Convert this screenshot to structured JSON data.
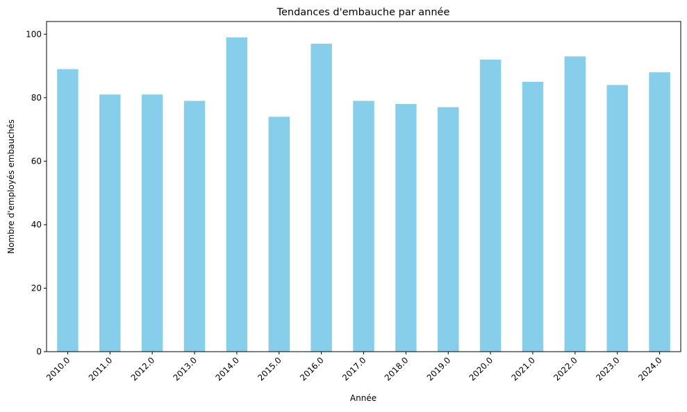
{
  "chart_data": {
    "type": "bar",
    "title": "Tendances d'embauche par année",
    "xlabel": "Année",
    "ylabel": "Nombre d'employés embauchés",
    "categories": [
      "2010.0",
      "2011.0",
      "2012.0",
      "2013.0",
      "2014.0",
      "2015.0",
      "2016.0",
      "2017.0",
      "2018.0",
      "2019.0",
      "2020.0",
      "2021.0",
      "2022.0",
      "2023.0",
      "2024.0"
    ],
    "values": [
      89,
      81,
      81,
      79,
      99,
      74,
      97,
      79,
      78,
      77,
      92,
      85,
      93,
      84,
      88
    ],
    "ylim": [
      0,
      104
    ],
    "yticks": [
      0,
      20,
      40,
      60,
      80,
      100
    ],
    "grid": false,
    "bar_color": "#87CEEB"
  }
}
